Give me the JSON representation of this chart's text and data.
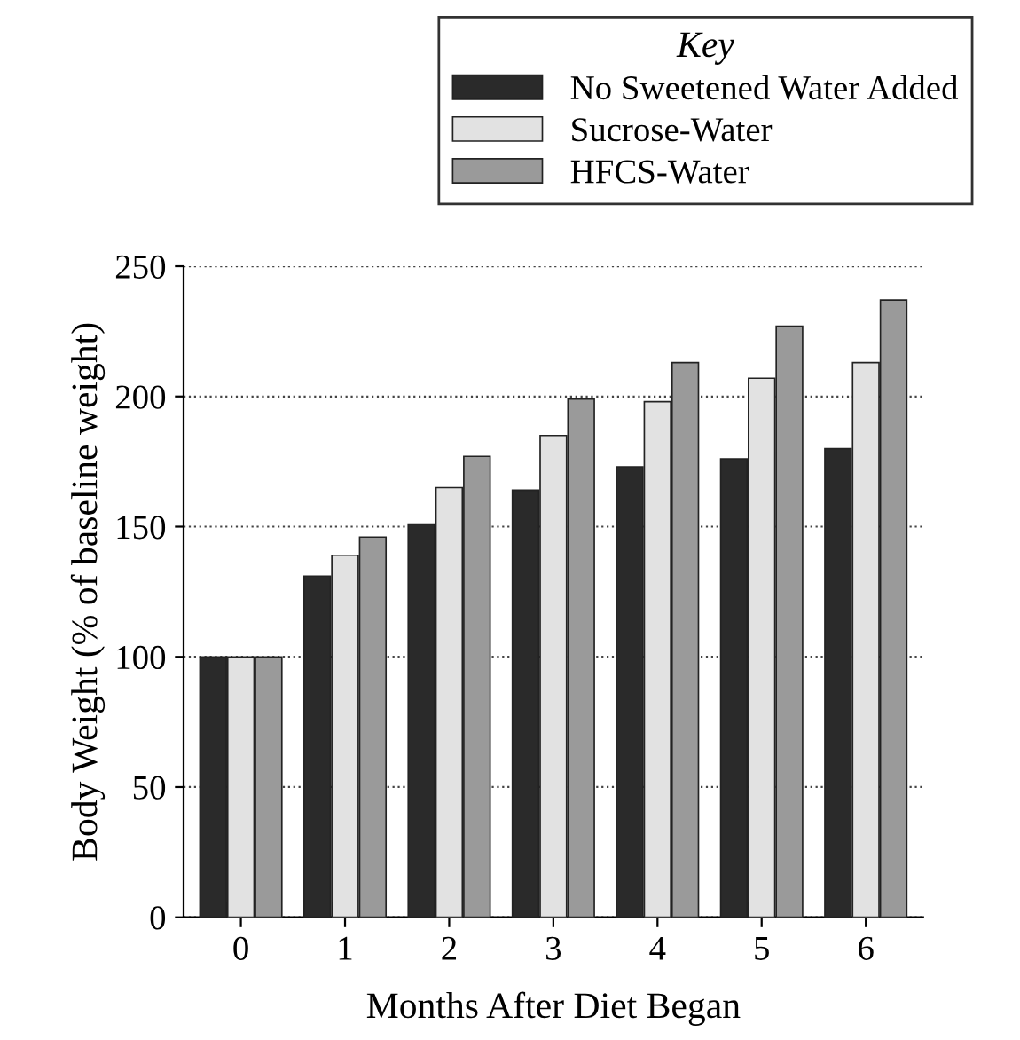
{
  "chart_data": {
    "type": "bar",
    "xlabel": "Months After Diet Began",
    "ylabel": "Body Weight (% of baseline weight)",
    "legend_title": "Key",
    "categories": [
      "0",
      "1",
      "2",
      "3",
      "4",
      "5",
      "6"
    ],
    "series": [
      {
        "name": "No Sweetened Water Added",
        "color": "#2a2a2a",
        "values": [
          100,
          131,
          151,
          164,
          173,
          176,
          180
        ]
      },
      {
        "name": "Sucrose-Water",
        "color": "#e2e2e2",
        "values": [
          100,
          139,
          165,
          185,
          198,
          207,
          213
        ]
      },
      {
        "name": "HFCS-Water",
        "color": "#9a9a9a",
        "values": [
          100,
          146,
          177,
          199,
          213,
          227,
          237
        ]
      }
    ],
    "ylim": [
      0,
      250
    ],
    "yticks": [
      0,
      50,
      100,
      150,
      200,
      250
    ],
    "grid": "y",
    "legend": "top right"
  }
}
